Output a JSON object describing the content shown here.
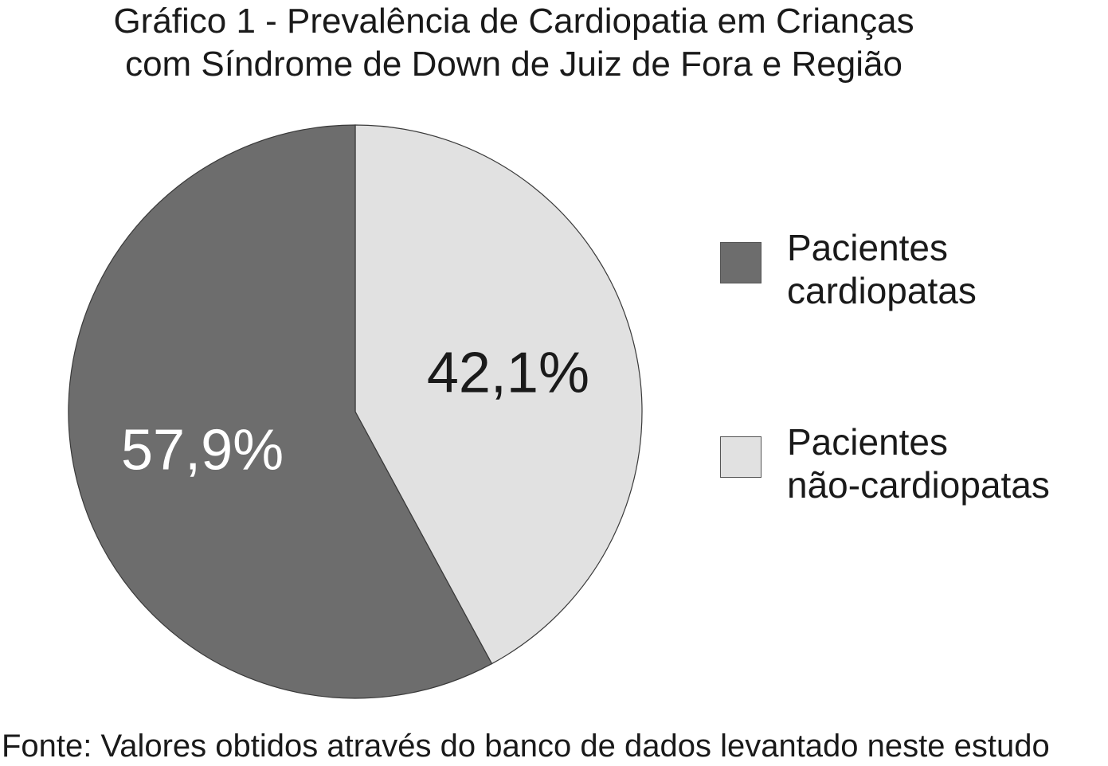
{
  "title_lines": [
    "Gráfico 1 - Prevalência de Cardiopatia em Crianças",
    "com Síndrome de Down de Juiz de Fora e Região"
  ],
  "source": "Fonte: Valores obtidos através do banco de dados levantado neste estudo",
  "chart_data": {
    "type": "pie",
    "title": "Gráfico 1 - Prevalência de Cardiopatia em Crianças com Síndrome de Down de Juiz de Fora e Região",
    "legend_position": "right",
    "slices": [
      {
        "name": "Pacientes não-cardiopatas",
        "label_lines": [
          "Pacientes",
          "não-cardiopatas"
        ],
        "value": 42.1,
        "data_label": "42,1%",
        "color": "#e1e1e1",
        "label_color": "#1a1a1a"
      },
      {
        "name": "Pacientes cardiopatas",
        "label_lines": [
          "Pacientes",
          "cardiopatas"
        ],
        "value": 57.9,
        "data_label": "57,9%",
        "color": "#6d6d6d",
        "label_color": "#ffffff"
      }
    ],
    "legend_order": [
      1,
      0
    ]
  }
}
